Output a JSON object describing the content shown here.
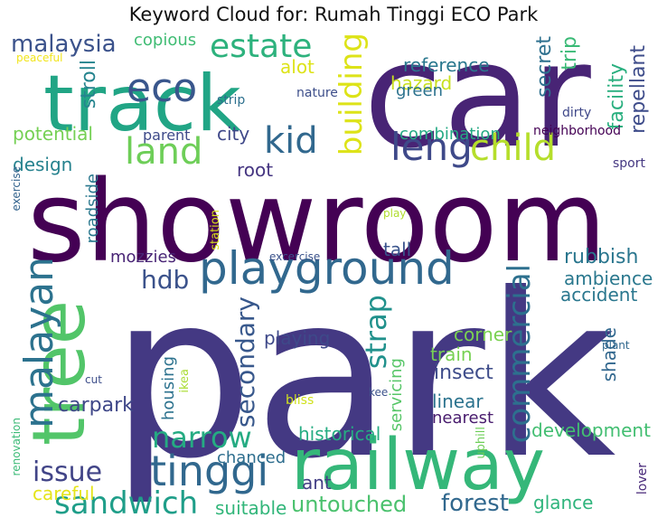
{
  "title": "Keyword Cloud for: Rumah Tinggi ECO Park",
  "words": [
    {
      "text": "park",
      "color": "#443983"
    },
    {
      "text": "showroom",
      "color": "#440154"
    },
    {
      "text": "car",
      "color": "#482475"
    },
    {
      "text": "track",
      "color": "#21a585"
    },
    {
      "text": "railway",
      "color": "#35b779"
    },
    {
      "text": "tree",
      "color": "#52c569"
    },
    {
      "text": "playground",
      "color": "#31688e"
    },
    {
      "text": "malayan",
      "color": "#2c728e"
    },
    {
      "text": "tinggi",
      "color": "#31688e"
    },
    {
      "text": "sandwich",
      "color": "#1f9e89"
    },
    {
      "text": "narrow",
      "color": "#25ab82"
    },
    {
      "text": "eco",
      "color": "#39568c"
    },
    {
      "text": "estate",
      "color": "#2db27d"
    },
    {
      "text": "land",
      "color": "#6ece58"
    },
    {
      "text": "kid",
      "color": "#31688e"
    },
    {
      "text": "leng",
      "color": "#3e4989"
    },
    {
      "text": "child",
      "color": "#b5de2b"
    },
    {
      "text": "building",
      "color": "#dde318"
    },
    {
      "text": "commercial",
      "color": "#2d708e"
    },
    {
      "text": "strap",
      "color": "#21918c"
    },
    {
      "text": "secondary",
      "color": "#38588c"
    },
    {
      "text": "malaysia",
      "color": "#3b528b"
    },
    {
      "text": "copious",
      "color": "#3fbc73"
    },
    {
      "text": "alot",
      "color": "#dde318"
    },
    {
      "text": "stroll",
      "color": "#25848e"
    },
    {
      "text": "potential",
      "color": "#75d054"
    },
    {
      "text": "design",
      "color": "#26828e"
    },
    {
      "text": "parent",
      "color": "#3e4a89"
    },
    {
      "text": "city",
      "color": "#3f4889"
    },
    {
      "text": "root",
      "color": "#453581"
    },
    {
      "text": "reference",
      "color": "#2a788e"
    },
    {
      "text": "hazard",
      "color": "#c8e020"
    },
    {
      "text": "green",
      "color": "#2c728e"
    },
    {
      "text": "secret",
      "color": "#2d708e"
    },
    {
      "text": "trip",
      "color": "#3aba76"
    },
    {
      "text": "facility",
      "color": "#29af7f"
    },
    {
      "text": "repellant",
      "color": "#3e4c8a"
    },
    {
      "text": "combination",
      "color": "#23a983"
    },
    {
      "text": "hdb",
      "color": "#3b528b"
    },
    {
      "text": "mozzies",
      "color": "#482475"
    },
    {
      "text": "roadside",
      "color": "#2a788e"
    },
    {
      "text": "tall",
      "color": "#3a548c"
    },
    {
      "text": "rubbish",
      "color": "#2a768e"
    },
    {
      "text": "ambience",
      "color": "#2a788e"
    },
    {
      "text": "accident",
      "color": "#2a778e"
    },
    {
      "text": "housing",
      "color": "#2c728e"
    },
    {
      "text": "playing",
      "color": "#3e4989"
    },
    {
      "text": "corner",
      "color": "#7ad151"
    },
    {
      "text": "train",
      "color": "#77d153"
    },
    {
      "text": "insect",
      "color": "#3e4c8a"
    },
    {
      "text": "servicing",
      "color": "#56c667"
    },
    {
      "text": "linear",
      "color": "#2c738e"
    },
    {
      "text": "nearest",
      "color": "#481b6d"
    },
    {
      "text": "shade",
      "color": "#31678e"
    },
    {
      "text": "carpark",
      "color": "#3f4788"
    },
    {
      "text": "historical",
      "color": "#25ac82"
    },
    {
      "text": "development",
      "color": "#42be71"
    },
    {
      "text": "chanced",
      "color": "#2e6e8e"
    },
    {
      "text": "issue",
      "color": "#414487"
    },
    {
      "text": "careful",
      "color": "#e5e419"
    },
    {
      "text": "ant",
      "color": "#433e85"
    },
    {
      "text": "suitable",
      "color": "#32b67a"
    },
    {
      "text": "untouched",
      "color": "#4ac16d"
    },
    {
      "text": "forest",
      "color": "#31688e"
    },
    {
      "text": "glance",
      "color": "#2fb47c"
    },
    {
      "text": "peaceful",
      "color": "#f1e51d"
    },
    {
      "text": "strip",
      "color": "#2d708e"
    },
    {
      "text": "nature",
      "color": "#3d4e8a"
    },
    {
      "text": "dirty",
      "color": "#3f4889"
    },
    {
      "text": "neighborhood",
      "color": "#440154"
    },
    {
      "text": "sport",
      "color": "#453882"
    },
    {
      "text": "exercise",
      "color": "#33638d"
    },
    {
      "text": "station",
      "color": "#d8e219"
    },
    {
      "text": "play",
      "color": "#b0dd2f"
    },
    {
      "text": "excercise",
      "color": "#3b528b"
    },
    {
      "text": "ikea",
      "color": "#aadc32"
    },
    {
      "text": "cut",
      "color": "#3d4e8a"
    },
    {
      "text": "plant",
      "color": "#31688e"
    },
    {
      "text": "bliss",
      "color": "#d0e11c"
    },
    {
      "text": "kee",
      "color": "#3b528b"
    },
    {
      "text": "renovation",
      "color": "#3aba76"
    },
    {
      "text": "uphill",
      "color": "#6ece58"
    },
    {
      "text": "lover",
      "color": "#482979"
    }
  ]
}
